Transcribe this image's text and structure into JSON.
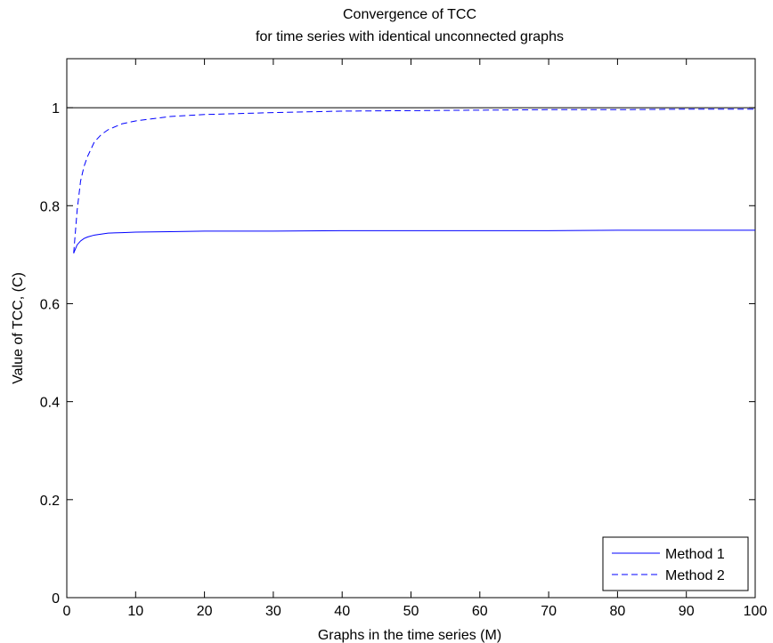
{
  "chart_data": {
    "type": "line",
    "title": [
      "Convergence of TCC",
      "for time series with identical unconnected graphs"
    ],
    "xlabel": "Graphs in the time series (M)",
    "ylabel": "Value of TCC, (C)",
    "xlim": [
      0,
      100
    ],
    "ylim": [
      0,
      1.1
    ],
    "xticks": [
      0,
      10,
      20,
      30,
      40,
      50,
      60,
      70,
      80,
      90,
      100
    ],
    "yticks": [
      0,
      0.2,
      0.4,
      0.6,
      0.8,
      1
    ],
    "xtick_labels": [
      "0",
      "10",
      "20",
      "30",
      "40",
      "50",
      "60",
      "70",
      "80",
      "90",
      "100"
    ],
    "ytick_labels": [
      "0",
      "0.2",
      "0.4",
      "0.6",
      "0.8",
      "1"
    ],
    "grid": false,
    "legend_position": "bottom-right",
    "reference_line": {
      "y": 1,
      "color": "#000000"
    },
    "series": [
      {
        "name": "Method 1",
        "color": "#0000ff",
        "style": "solid",
        "x": [
          1,
          1.5,
          2,
          2.5,
          3,
          4,
          5,
          6,
          8,
          10,
          15,
          20,
          30,
          40,
          50,
          60,
          70,
          80,
          90,
          100
        ],
        "y": [
          0.703,
          0.72,
          0.728,
          0.733,
          0.736,
          0.74,
          0.742,
          0.744,
          0.745,
          0.746,
          0.747,
          0.748,
          0.748,
          0.749,
          0.749,
          0.749,
          0.749,
          0.75,
          0.75,
          0.75
        ]
      },
      {
        "name": "Method 2",
        "color": "#0000ff",
        "style": "dashed",
        "x": [
          1,
          1.5,
          2,
          2.5,
          3,
          4,
          5,
          6,
          8,
          10,
          15,
          20,
          30,
          40,
          50,
          60,
          70,
          80,
          90,
          100
        ],
        "y": [
          0.703,
          0.79,
          0.85,
          0.88,
          0.9,
          0.93,
          0.945,
          0.955,
          0.967,
          0.973,
          0.982,
          0.986,
          0.99,
          0.993,
          0.994,
          0.995,
          0.996,
          0.996,
          0.997,
          0.997
        ]
      }
    ]
  }
}
